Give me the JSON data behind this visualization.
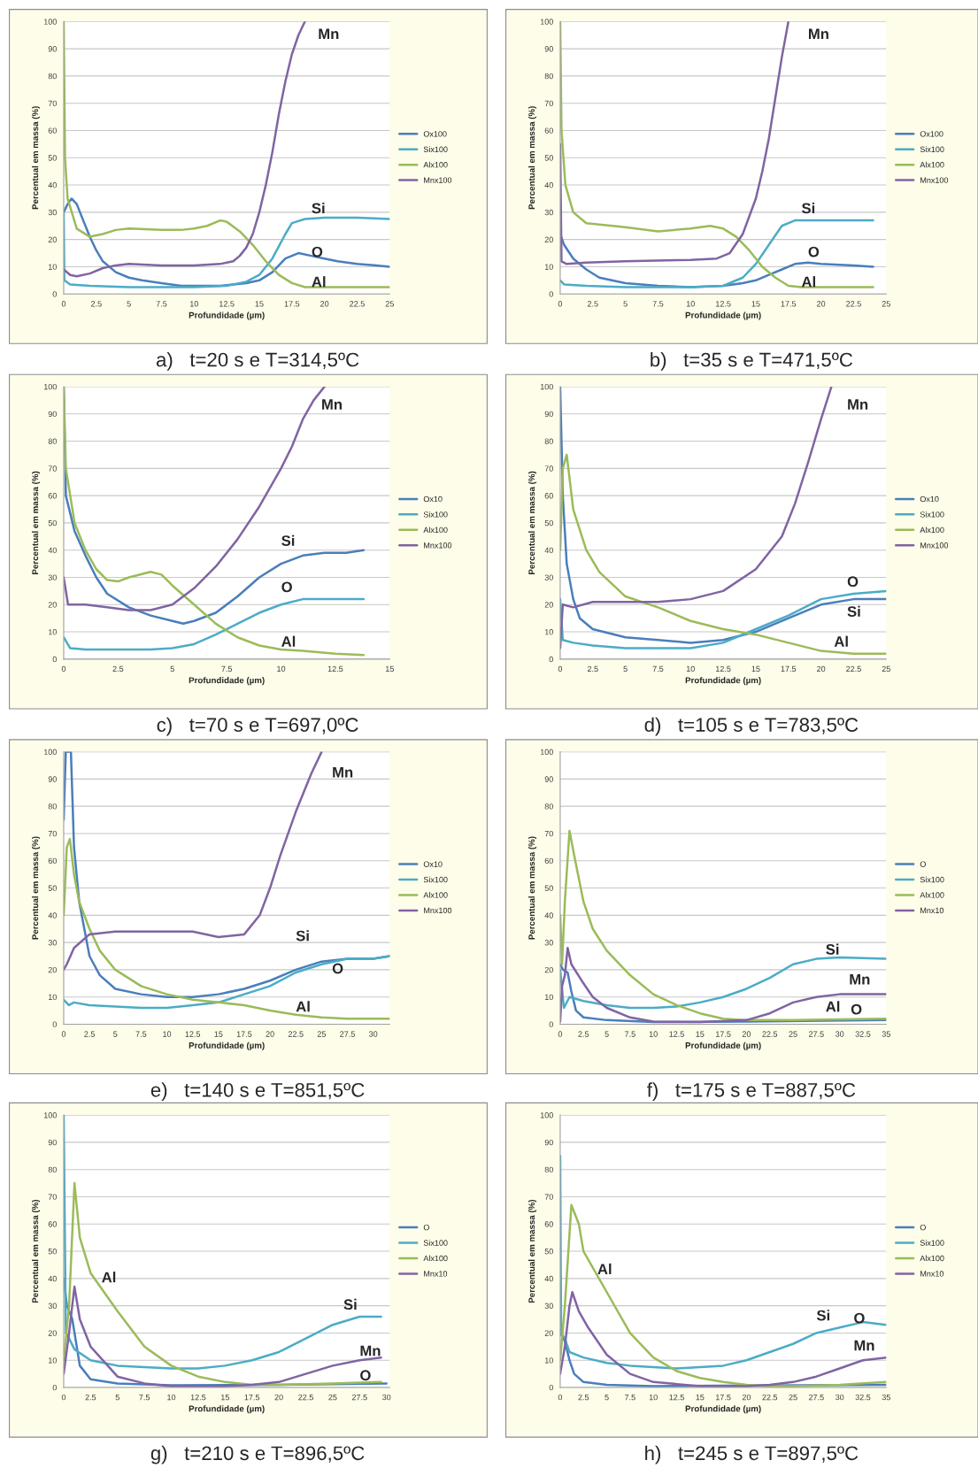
{
  "chart_data": [
    {
      "type": "line",
      "title": "a)   t=20 s e T=314,5ºC",
      "xlabel": "Profundidade (µm)",
      "ylabel": "Percentual em massa (%)",
      "xlim": [
        0,
        25
      ],
      "ylim": [
        0,
        100
      ],
      "xticks": [
        0,
        2.5,
        5,
        7.5,
        10,
        12.5,
        15,
        17.5,
        20,
        22.5,
        25
      ],
      "yticks": [
        0,
        10,
        20,
        30,
        40,
        50,
        60,
        70,
        80,
        90,
        100
      ],
      "grid": "y",
      "legend": "right",
      "marker": "none",
      "series": [
        {
          "name": "Ox100",
          "color": "#4a7ebb",
          "x": [
            0,
            0.3,
            0.6,
            1,
            1.5,
            2,
            2.5,
            3,
            4,
            5,
            6,
            7.5,
            9,
            10,
            12,
            13,
            14,
            15,
            16,
            17,
            18,
            19,
            20,
            21,
            22.5,
            24,
            25
          ],
          "values": [
            30,
            33,
            35,
            33,
            27,
            21,
            16,
            12,
            8,
            6,
            5,
            4,
            3,
            3,
            3,
            3.5,
            4,
            5,
            8,
            13,
            15,
            14,
            13,
            12,
            11,
            10.5,
            10
          ]
        },
        {
          "name": "Six100",
          "color": "#4bacc6",
          "x": [
            0,
            0.05,
            0.5,
            2,
            5,
            10,
            12.5,
            14,
            15,
            16,
            17,
            17.5,
            18.5,
            20,
            22.5,
            25
          ],
          "values": [
            30,
            5,
            3.5,
            3,
            2.5,
            2.5,
            3,
            4.5,
            7,
            13,
            22,
            26,
            27.5,
            28,
            28,
            27.5
          ]
        },
        {
          "name": "Alx100",
          "color": "#9bbb59",
          "x": [
            0,
            0.1,
            0.3,
            1,
            2,
            3,
            4,
            5,
            7.5,
            9,
            10,
            11,
            12,
            12.5,
            13.5,
            14.5,
            15.5,
            16.5,
            17.5,
            18.5,
            20,
            25
          ],
          "values": [
            100,
            50,
            35,
            24,
            21,
            22,
            23.5,
            24,
            23.5,
            23.5,
            24,
            25,
            27,
            26.5,
            23,
            18,
            12,
            7,
            4,
            2.5,
            2.5,
            2.5
          ]
        },
        {
          "name": "Mnx100",
          "color": "#8064a2",
          "x": [
            0,
            0.5,
            1,
            2,
            3,
            4,
            5,
            7.5,
            10,
            12,
            13,
            13.5,
            14,
            14.5,
            15,
            15.5,
            16,
            16.5,
            17,
            17.5,
            18,
            18.5
          ],
          "values": [
            9,
            7,
            6.5,
            7.5,
            9.5,
            10.5,
            11,
            10.5,
            10.5,
            11,
            12,
            14,
            17,
            22,
            30,
            40,
            52,
            66,
            78,
            88,
            95,
            100
          ]
        }
      ],
      "annotations": [
        "Mn",
        "Si",
        "O",
        "Al"
      ]
    },
    {
      "type": "line",
      "title": "b)   t=35 s e T=471,5ºC",
      "xlabel": "Profundidade (µm)",
      "ylabel": "Percentual em massa (%)",
      "xlim": [
        0,
        25
      ],
      "ylim": [
        0,
        100
      ],
      "xticks": [
        0,
        2.5,
        5,
        7.5,
        10,
        12.5,
        15,
        17.5,
        20,
        22.5,
        25
      ],
      "yticks": [
        0,
        10,
        20,
        30,
        40,
        50,
        60,
        70,
        80,
        90,
        100
      ],
      "grid": "y",
      "legend": "right",
      "marker": "none",
      "series": [
        {
          "name": "Ox100",
          "color": "#4a7ebb",
          "x": [
            0,
            0.3,
            1,
            2,
            3,
            5,
            7.5,
            10,
            12.5,
            14,
            15,
            16,
            17,
            18,
            19,
            20,
            22.5,
            24
          ],
          "values": [
            22,
            18,
            13,
            9,
            6,
            4,
            3,
            2.5,
            3,
            4,
            5,
            7,
            9,
            11,
            11.5,
            11,
            10.5,
            10
          ]
        },
        {
          "name": "Six100",
          "color": "#4bacc6",
          "x": [
            0,
            0.3,
            2,
            5,
            10,
            12.5,
            14,
            15,
            16,
            17,
            18,
            20,
            24
          ],
          "values": [
            5,
            3.5,
            3,
            2.5,
            2.5,
            3,
            6,
            11,
            18,
            25,
            27,
            27,
            27
          ]
        },
        {
          "name": "Alx100",
          "color": "#9bbb59",
          "x": [
            0,
            0.1,
            0.4,
            1,
            2,
            5,
            7.5,
            10,
            11.5,
            12.5,
            13.5,
            14.5,
            15.5,
            16.5,
            17.5,
            18.5,
            24
          ],
          "values": [
            100,
            60,
            40,
            30,
            26,
            24.5,
            23,
            24,
            25,
            24,
            21,
            16,
            10,
            6,
            3,
            2.5,
            2.5
          ]
        },
        {
          "name": "Mnx100",
          "color": "#8064a2",
          "x": [
            0,
            0.1,
            0.5,
            2,
            5,
            10,
            12,
            13,
            14,
            15,
            15.5,
            16,
            16.5,
            17,
            17.5
          ],
          "values": [
            55,
            12,
            11,
            11.5,
            12,
            12.5,
            13,
            15,
            22,
            35,
            45,
            57,
            72,
            87,
            100
          ]
        }
      ],
      "annotations": [
        "Mn",
        "Si",
        "O",
        "Al"
      ]
    },
    {
      "type": "line",
      "title": "c)   t=70 s e T=697,0ºC",
      "xlabel": "Profundidade (µm)",
      "ylabel": "Percentual em massa (%)",
      "xlim": [
        0,
        15
      ],
      "ylim": [
        0,
        100
      ],
      "xticks": [
        0,
        2.5,
        5,
        7.5,
        10,
        12.5,
        15
      ],
      "yticks": [
        0,
        10,
        20,
        30,
        40,
        50,
        60,
        70,
        80,
        90,
        100
      ],
      "grid": "y",
      "legend": "right",
      "marker": "none",
      "series": [
        {
          "name": "Ox10",
          "color": "#4a7ebb",
          "x": [
            0,
            0.1,
            0.5,
            1,
            1.5,
            2,
            3,
            4,
            5,
            5.5,
            6,
            7,
            8,
            9,
            10,
            11,
            12,
            13,
            13.8
          ],
          "values": [
            100,
            60,
            47,
            38,
            30,
            24,
            19,
            16,
            14,
            13,
            14,
            17,
            23,
            30,
            35,
            38,
            39,
            39,
            40
          ]
        },
        {
          "name": "Six100",
          "color": "#4bacc6",
          "x": [
            0,
            0.3,
            1,
            2.5,
            4,
            5,
            6,
            7,
            8,
            9,
            10,
            11,
            12,
            13,
            13.8
          ],
          "values": [
            8,
            4,
            3.5,
            3.5,
            3.5,
            4,
            5.5,
            9,
            13,
            17,
            20,
            22,
            22,
            22,
            22
          ]
        },
        {
          "name": "Alx100",
          "color": "#9bbb59",
          "x": [
            0,
            0.1,
            0.5,
            1,
            1.5,
            2,
            2.5,
            3,
            4,
            4.5,
            5,
            6,
            7,
            8,
            9,
            10,
            11,
            12.5,
            13.8
          ],
          "values": [
            100,
            70,
            50,
            40,
            33,
            29,
            28.5,
            30,
            32,
            31,
            27,
            20,
            13,
            8,
            5,
            3.5,
            3,
            2,
            1.5
          ]
        },
        {
          "name": "Mnx100",
          "color": "#8064a2",
          "x": [
            0,
            0.2,
            1,
            2,
            3,
            4,
            5,
            6,
            7,
            8,
            9,
            10,
            10.5,
            11,
            11.5,
            12
          ],
          "values": [
            30,
            20,
            20,
            19,
            18,
            18,
            20,
            26,
            34,
            44,
            56,
            70,
            78,
            88,
            95,
            100
          ]
        }
      ],
      "annotations": [
        "Mn",
        "Si",
        "O",
        "Al"
      ]
    },
    {
      "type": "line",
      "title": "d)   t=105 s e T=783,5ºC",
      "xlabel": "Profundidade (µm)",
      "ylabel": "Percentual em massa (%)",
      "xlim": [
        0,
        25
      ],
      "ylim": [
        0,
        100
      ],
      "xticks": [
        0,
        2.5,
        5,
        7.5,
        10,
        12.5,
        15,
        17.5,
        20,
        22.5,
        25
      ],
      "yticks": [
        0,
        10,
        20,
        30,
        40,
        50,
        60,
        70,
        80,
        90,
        100
      ],
      "grid": "y",
      "legend": "right",
      "marker": "none",
      "series": [
        {
          "name": "Ox10",
          "color": "#4a7ebb",
          "x": [
            0,
            0.2,
            0.5,
            1,
            1.5,
            2.5,
            5,
            7.5,
            10,
            12.5,
            15,
            17.5,
            20,
            22.5,
            25
          ],
          "values": [
            100,
            60,
            35,
            22,
            15,
            11,
            8,
            7,
            6,
            7,
            10,
            15,
            20,
            22,
            22
          ]
        },
        {
          "name": "Six100",
          "color": "#4bacc6",
          "x": [
            0,
            0.2,
            1,
            2.5,
            5,
            7.5,
            10,
            12.5,
            15,
            17.5,
            20,
            22.5,
            25
          ],
          "values": [
            22,
            7,
            6,
            5,
            4,
            4,
            4,
            6,
            11,
            16,
            22,
            24,
            25
          ]
        },
        {
          "name": "Alx100",
          "color": "#9bbb59",
          "x": [
            0,
            0.2,
            0.5,
            1,
            2,
            3,
            5,
            7.5,
            10,
            12.5,
            15,
            17.5,
            20,
            22.5,
            25
          ],
          "values": [
            40,
            70,
            75,
            55,
            40,
            32,
            23,
            19,
            14,
            11,
            9,
            6,
            3,
            2,
            2
          ]
        },
        {
          "name": "Mnx100",
          "color": "#8064a2",
          "x": [
            0,
            0.2,
            1,
            2.5,
            5,
            7.5,
            10,
            12.5,
            15,
            17,
            18,
            19,
            20,
            20.8
          ],
          "values": [
            4,
            20,
            19,
            21,
            21,
            21,
            22,
            25,
            33,
            45,
            57,
            72,
            88,
            100
          ]
        }
      ],
      "annotations": [
        "Mn",
        "O",
        "Si",
        "Al"
      ]
    },
    {
      "type": "line",
      "title": "e)   t=140 s e T=851,5ºC",
      "xlabel": "Profundidade (µm)",
      "ylabel": "Percentual em massa (%)",
      "xlim": [
        0,
        31.6
      ],
      "ylim": [
        0,
        100
      ],
      "xticks": [
        0,
        2.5,
        5,
        7.5,
        10,
        12.5,
        15,
        17.5,
        20,
        22.5,
        25,
        27.5,
        30
      ],
      "yticks": [
        0,
        10,
        20,
        30,
        40,
        50,
        60,
        70,
        80,
        90,
        100
      ],
      "grid": "y",
      "legend": "right",
      "marker": "none",
      "series": [
        {
          "name": "Ox10",
          "color": "#4a7ebb",
          "x": [
            0,
            0.2,
            0.7,
            1,
            1.5,
            2.5,
            3.5,
            5,
            7.5,
            10,
            12.5,
            15,
            17.5,
            20,
            22.5,
            25,
            27.5,
            30,
            31.6
          ],
          "values": [
            75,
            100,
            100,
            65,
            45,
            25,
            18,
            13,
            11,
            10,
            10,
            11,
            13,
            16,
            20,
            23,
            24,
            24,
            25
          ]
        },
        {
          "name": "Six100",
          "color": "#4bacc6",
          "x": [
            0,
            0.5,
            1,
            2.5,
            5,
            7.5,
            10,
            12.5,
            15,
            17.5,
            20,
            22.5,
            25,
            27.5,
            30,
            31.6
          ],
          "values": [
            9,
            7,
            8,
            7,
            6.5,
            6,
            6,
            7,
            8,
            11,
            14,
            19,
            22,
            24,
            24,
            25
          ]
        },
        {
          "name": "Alx100",
          "color": "#9bbb59",
          "x": [
            0,
            0.3,
            0.6,
            1,
            1.5,
            2.5,
            3.5,
            5,
            7.5,
            10,
            12.5,
            15,
            17.5,
            20,
            22.5,
            25,
            27.5,
            31.6
          ],
          "values": [
            40,
            65,
            68,
            55,
            45,
            35,
            27,
            20,
            14,
            11,
            9,
            8,
            7,
            5,
            3.5,
            2.5,
            2,
            2
          ]
        },
        {
          "name": "Mnx100",
          "color": "#8064a2",
          "x": [
            0,
            0.3,
            1,
            2.5,
            5,
            7.5,
            10,
            12.5,
            15,
            17.5,
            19,
            20,
            21,
            22.5,
            24,
            25
          ],
          "values": [
            20,
            22,
            28,
            33,
            34,
            34,
            34,
            34,
            32,
            33,
            40,
            50,
            62,
            78,
            92,
            100
          ]
        }
      ],
      "annotations": [
        "Mn",
        "Si",
        "O",
        "Al"
      ]
    },
    {
      "type": "line",
      "title": "f)   t=175 s e T=887,5ºC",
      "xlabel": "Profundidade (µm)",
      "ylabel": "Percentual em massa (%)",
      "xlim": [
        0,
        35
      ],
      "ylim": [
        0,
        100
      ],
      "xticks": [
        0,
        2.5,
        5,
        7.5,
        10,
        12.5,
        15,
        17.5,
        20,
        22.5,
        25,
        27.5,
        30,
        32.5,
        35
      ],
      "yticks": [
        0,
        10,
        20,
        30,
        40,
        50,
        60,
        70,
        80,
        90,
        100
      ],
      "grid": "y",
      "legend": "right",
      "marker": "none",
      "series": [
        {
          "name": "O",
          "color": "#4a7ebb",
          "x": [
            0,
            0.3,
            0.8,
            1.2,
            1.7,
            2.5,
            5,
            10,
            20,
            35
          ],
          "values": [
            22,
            20,
            19,
            12,
            5,
            2.5,
            1.5,
            0.8,
            1,
            1.5
          ]
        },
        {
          "name": "Six100",
          "color": "#4bacc6",
          "x": [
            0,
            0.4,
            1,
            2.5,
            5,
            7.5,
            10,
            12.5,
            15,
            17.5,
            20,
            22.5,
            25,
            27.5,
            30,
            35
          ],
          "values": [
            20,
            6,
            10,
            8.5,
            7,
            6,
            6,
            6.5,
            8,
            10,
            13,
            17,
            22,
            24,
            24.5,
            24
          ]
        },
        {
          "name": "Alx100",
          "color": "#9bbb59",
          "x": [
            0,
            0.2,
            0.5,
            1,
            1.5,
            2.5,
            3.5,
            5,
            7.5,
            10,
            12.5,
            15,
            17.5,
            20,
            25,
            35
          ],
          "values": [
            40,
            22,
            45,
            71,
            62,
            45,
            35,
            27,
            18,
            11,
            7,
            4,
            2,
            1.5,
            1.5,
            2
          ]
        },
        {
          "name": "Mnx10",
          "color": "#8064a2",
          "x": [
            0,
            0.2,
            0.5,
            0.8,
            1.2,
            2.5,
            3.5,
            5,
            7.5,
            10,
            15,
            20,
            22.5,
            25,
            27.5,
            30,
            35
          ],
          "values": [
            1,
            14,
            18,
            28,
            22,
            15,
            10,
            6,
            2.5,
            1,
            0.8,
            1.5,
            4,
            8,
            10,
            11,
            11
          ]
        }
      ],
      "annotations": [
        "Si",
        "Mn",
        "Al",
        "O"
      ]
    },
    {
      "type": "line",
      "title": "g)   t=210 s e T=896,5ºC",
      "xlabel": "Profundidade (µm)",
      "ylabel": "Percentual em massa (%)",
      "xlim": [
        0,
        30.3
      ],
      "ylim": [
        0,
        100
      ],
      "xticks": [
        0,
        2.5,
        5,
        7.5,
        10,
        12.5,
        15,
        17.5,
        20,
        22.5,
        25,
        27.5,
        30
      ],
      "yticks": [
        0,
        10,
        20,
        30,
        40,
        50,
        60,
        70,
        80,
        90,
        100
      ],
      "grid": "y",
      "legend": "right",
      "marker": "none",
      "series": [
        {
          "name": "O",
          "color": "#4a7ebb",
          "x": [
            0,
            0.3,
            0.8,
            1.5,
            2.5,
            5,
            10,
            20,
            30
          ],
          "values": [
            40,
            30,
            25,
            8,
            3,
            1.5,
            0.8,
            1,
            1.5
          ]
        },
        {
          "name": "Six100",
          "color": "#4bacc6",
          "x": [
            0,
            0.2,
            0.5,
            1,
            2.5,
            5,
            7.5,
            10,
            12.5,
            15,
            17.5,
            20,
            22.5,
            25,
            27.5,
            29.5
          ],
          "values": [
            100,
            20,
            18,
            14,
            10,
            8,
            7.5,
            7,
            7,
            8,
            10,
            13,
            18,
            23,
            26,
            26
          ]
        },
        {
          "name": "Alx100",
          "color": "#9bbb59",
          "x": [
            0,
            0.5,
            1,
            1.5,
            2.5,
            5,
            7.5,
            10,
            12.5,
            15,
            17.5,
            20,
            25,
            29.5
          ],
          "values": [
            10,
            30,
            75,
            55,
            42,
            28,
            15,
            8,
            4,
            2,
            1,
            1,
            1.5,
            2
          ]
        },
        {
          "name": "Mnx10",
          "color": "#8064a2",
          "x": [
            0,
            0.5,
            1,
            1.5,
            2.5,
            5,
            7.5,
            10,
            15,
            17.5,
            20,
            22.5,
            25,
            27.5,
            29.5
          ],
          "values": [
            5,
            20,
            37,
            25,
            15,
            4,
            1.5,
            0.5,
            0.5,
            1,
            2,
            5,
            8,
            10,
            11
          ]
        }
      ],
      "annotations": [
        "Al",
        "Si",
        "Mn",
        "O"
      ]
    },
    {
      "type": "line",
      "title": "h)   t=245 s e T=897,5ºC",
      "xlabel": "Profundidade (µm)",
      "ylabel": "Percentual em massa (%)",
      "xlim": [
        0,
        35
      ],
      "ylim": [
        0,
        100
      ],
      "xticks": [
        0,
        2.5,
        5,
        7.5,
        10,
        12.5,
        15,
        17.5,
        20,
        22.5,
        25,
        27.5,
        30,
        32.5,
        35
      ],
      "yticks": [
        0,
        10,
        20,
        30,
        40,
        50,
        60,
        70,
        80,
        90,
        100
      ],
      "grid": "y",
      "legend": "right",
      "marker": "none",
      "series": [
        {
          "name": "O",
          "color": "#4a7ebb",
          "x": [
            0,
            0.5,
            1,
            1.5,
            2.5,
            5,
            10,
            35
          ],
          "values": [
            20,
            17,
            10,
            5,
            2,
            1,
            0.5,
            1
          ]
        },
        {
          "name": "Six100",
          "color": "#4bacc6",
          "x": [
            0,
            0.1,
            0.5,
            1,
            2.5,
            5,
            7.5,
            10,
            12.5,
            15,
            17.5,
            20,
            22.5,
            25,
            27.5,
            30,
            32.5,
            35
          ],
          "values": [
            85,
            20,
            18,
            13,
            11,
            9,
            8,
            7.5,
            7,
            7.5,
            8,
            10,
            13,
            16,
            20,
            22,
            24,
            23
          ]
        },
        {
          "name": "Alx100",
          "color": "#9bbb59",
          "x": [
            0,
            0.5,
            1.2,
            2,
            2.5,
            5,
            7.5,
            10,
            12.5,
            15,
            17.5,
            20,
            22.5,
            25,
            30,
            35
          ],
          "values": [
            10,
            30,
            67,
            60,
            50,
            35,
            20,
            11,
            6,
            3.5,
            2,
            1,
            0.5,
            0.5,
            1,
            2
          ]
        },
        {
          "name": "Mnx10",
          "color": "#8064a2",
          "x": [
            0,
            0.5,
            1,
            1.3,
            2,
            3,
            5,
            7.5,
            10,
            15,
            20,
            22.5,
            25,
            27.5,
            30,
            32.5,
            35
          ],
          "values": [
            5,
            15,
            30,
            35,
            28,
            22,
            12,
            5,
            2,
            0.5,
            0.5,
            1,
            2,
            4,
            7,
            10,
            11
          ]
        }
      ],
      "annotations": [
        "Al",
        "Si",
        "O",
        "Mn"
      ]
    }
  ]
}
